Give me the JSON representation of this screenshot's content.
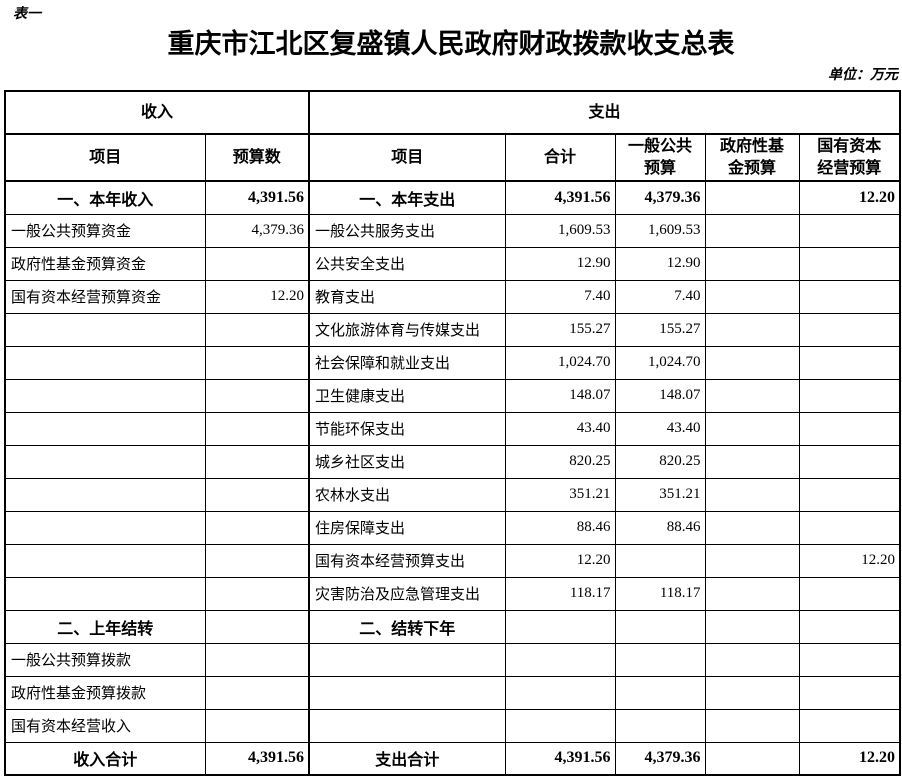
{
  "meta": {
    "table_label": "表一",
    "title": "重庆市江北区复盛镇人民政府财政拨款收支总表",
    "unit_note": "单位：万元"
  },
  "colors": {
    "text": "#000000",
    "background": "#ffffff",
    "gridline": "#000000"
  },
  "table": {
    "section_headers": {
      "income": "收入",
      "expense": "支出"
    },
    "column_headers": {
      "income_item": "项目",
      "income_budget": "预算数",
      "expense_item": "项目",
      "expense_total": "合计",
      "expense_general": "一般公共预算",
      "expense_govfund": "政府性基金预算",
      "expense_statecap": "国有资本经营预算"
    },
    "rows": [
      {
        "income_label": "一、本年收入",
        "income_budget": "4,391.56",
        "income_style": "section",
        "expense_label": "一、本年支出",
        "expense_total": "4,391.56",
        "expense_general": "4,379.36",
        "expense_govfund": "",
        "expense_statecap": "12.20",
        "expense_style": "section"
      },
      {
        "income_label": "一般公共预算资金",
        "income_budget": "4,379.36",
        "income_style": "item",
        "expense_label": "一般公共服务支出",
        "expense_total": "1,609.53",
        "expense_general": "1,609.53",
        "expense_govfund": "",
        "expense_statecap": "",
        "expense_style": "item"
      },
      {
        "income_label": "政府性基金预算资金",
        "income_budget": "",
        "income_style": "item",
        "expense_label": "公共安全支出",
        "expense_total": "12.90",
        "expense_general": "12.90",
        "expense_govfund": "",
        "expense_statecap": "",
        "expense_style": "item"
      },
      {
        "income_label": "国有资本经营预算资金",
        "income_budget": "12.20",
        "income_style": "item",
        "expense_label": "教育支出",
        "expense_total": "7.40",
        "expense_general": "7.40",
        "expense_govfund": "",
        "expense_statecap": "",
        "expense_style": "item"
      },
      {
        "income_label": "",
        "income_budget": "",
        "income_style": "item",
        "expense_label": "文化旅游体育与传媒支出",
        "expense_total": "155.27",
        "expense_general": "155.27",
        "expense_govfund": "",
        "expense_statecap": "",
        "expense_style": "item"
      },
      {
        "income_label": "",
        "income_budget": "",
        "income_style": "item",
        "expense_label": "社会保障和就业支出",
        "expense_total": "1,024.70",
        "expense_general": "1,024.70",
        "expense_govfund": "",
        "expense_statecap": "",
        "expense_style": "item"
      },
      {
        "income_label": "",
        "income_budget": "",
        "income_style": "item",
        "expense_label": "卫生健康支出",
        "expense_total": "148.07",
        "expense_general": "148.07",
        "expense_govfund": "",
        "expense_statecap": "",
        "expense_style": "item"
      },
      {
        "income_label": "",
        "income_budget": "",
        "income_style": "item",
        "expense_label": "节能环保支出",
        "expense_total": "43.40",
        "expense_general": "43.40",
        "expense_govfund": "",
        "expense_statecap": "",
        "expense_style": "item"
      },
      {
        "income_label": "",
        "income_budget": "",
        "income_style": "item",
        "expense_label": "城乡社区支出",
        "expense_total": "820.25",
        "expense_general": "820.25",
        "expense_govfund": "",
        "expense_statecap": "",
        "expense_style": "item"
      },
      {
        "income_label": "",
        "income_budget": "",
        "income_style": "item",
        "expense_label": "农林水支出",
        "expense_total": "351.21",
        "expense_general": "351.21",
        "expense_govfund": "",
        "expense_statecap": "",
        "expense_style": "item"
      },
      {
        "income_label": "",
        "income_budget": "",
        "income_style": "item",
        "expense_label": "住房保障支出",
        "expense_total": "88.46",
        "expense_general": "88.46",
        "expense_govfund": "",
        "expense_statecap": "",
        "expense_style": "item"
      },
      {
        "income_label": "",
        "income_budget": "",
        "income_style": "item",
        "expense_label": "国有资本经营预算支出",
        "expense_total": "12.20",
        "expense_general": "",
        "expense_govfund": "",
        "expense_statecap": "12.20",
        "expense_style": "item"
      },
      {
        "income_label": "",
        "income_budget": "",
        "income_style": "item",
        "expense_label": "灾害防治及应急管理支出",
        "expense_total": "118.17",
        "expense_general": "118.17",
        "expense_govfund": "",
        "expense_statecap": "",
        "expense_style": "item"
      },
      {
        "income_label": "二、上年结转",
        "income_budget": "",
        "income_style": "section",
        "expense_label": "二、结转下年",
        "expense_total": "",
        "expense_general": "",
        "expense_govfund": "",
        "expense_statecap": "",
        "expense_style": "section"
      },
      {
        "income_label": "一般公共预算拨款",
        "income_budget": "",
        "income_style": "item",
        "expense_label": "",
        "expense_total": "",
        "expense_general": "",
        "expense_govfund": "",
        "expense_statecap": "",
        "expense_style": "item"
      },
      {
        "income_label": "政府性基金预算拨款",
        "income_budget": "",
        "income_style": "item",
        "expense_label": "",
        "expense_total": "",
        "expense_general": "",
        "expense_govfund": "",
        "expense_statecap": "",
        "expense_style": "item"
      },
      {
        "income_label": "国有资本经营收入",
        "income_budget": "",
        "income_style": "item",
        "expense_label": "",
        "expense_total": "",
        "expense_general": "",
        "expense_govfund": "",
        "expense_statecap": "",
        "expense_style": "item"
      },
      {
        "income_label": "收入合计",
        "income_budget": "4,391.56",
        "income_style": "total",
        "expense_label": "支出合计",
        "expense_total": "4,391.56",
        "expense_general": "4,379.36",
        "expense_govfund": "",
        "expense_statecap": "12.20",
        "expense_style": "total"
      }
    ]
  }
}
